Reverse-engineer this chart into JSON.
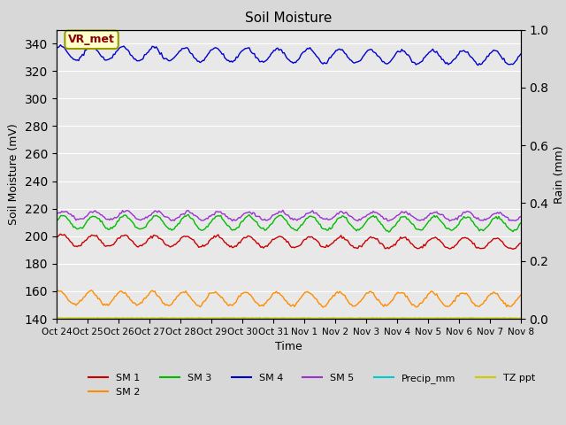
{
  "title": "Soil Moisture",
  "xlabel": "Time",
  "ylabel_left": "Soil Moisture (mV)",
  "ylabel_right": "Rain (mm)",
  "ylim_left": [
    140,
    350
  ],
  "ylim_right": [
    0.0,
    1.0
  ],
  "yticks_left": [
    140,
    160,
    180,
    200,
    220,
    240,
    260,
    280,
    300,
    320,
    340
  ],
  "yticks_right": [
    0.0,
    0.2,
    0.4,
    0.6,
    0.8,
    1.0
  ],
  "fig_background_color": "#d8d8d8",
  "plot_background_color": "#e8e8e8",
  "n_points": 360,
  "SM1_base": 197,
  "SM1_amp": 4,
  "SM1_trend": -0.007,
  "SM2_base": 155,
  "SM2_amp": 5,
  "SM2_trend": -0.003,
  "SM3_base": 210,
  "SM3_amp": 5,
  "SM3_trend": -0.003,
  "SM4_base": 333,
  "SM4_amp": 5,
  "SM4_trend": -0.01,
  "SM5_base": 215,
  "SM5_amp": 3,
  "SM5_trend": -0.002,
  "SM1_color": "#cc0000",
  "SM2_color": "#ff8c00",
  "SM3_color": "#00bb00",
  "SM4_color": "#0000cc",
  "SM5_color": "#9933cc",
  "Precip_color": "#00cccc",
  "TZppt_color": "#cccc00",
  "legend_label_box_color": "#ffffcc",
  "legend_label_box_edge": "#999900",
  "legend_label_text": "VR_met",
  "x_tick_labels": [
    "Oct 24",
    "Oct 25",
    "Oct 26",
    "Oct 27",
    "Oct 28",
    "Oct 29",
    "Oct 30",
    "Oct 31",
    "Nov 1",
    "Nov 2",
    "Nov 3",
    "Nov 4",
    "Nov 5",
    "Nov 6",
    "Nov 7",
    "Nov 8"
  ]
}
